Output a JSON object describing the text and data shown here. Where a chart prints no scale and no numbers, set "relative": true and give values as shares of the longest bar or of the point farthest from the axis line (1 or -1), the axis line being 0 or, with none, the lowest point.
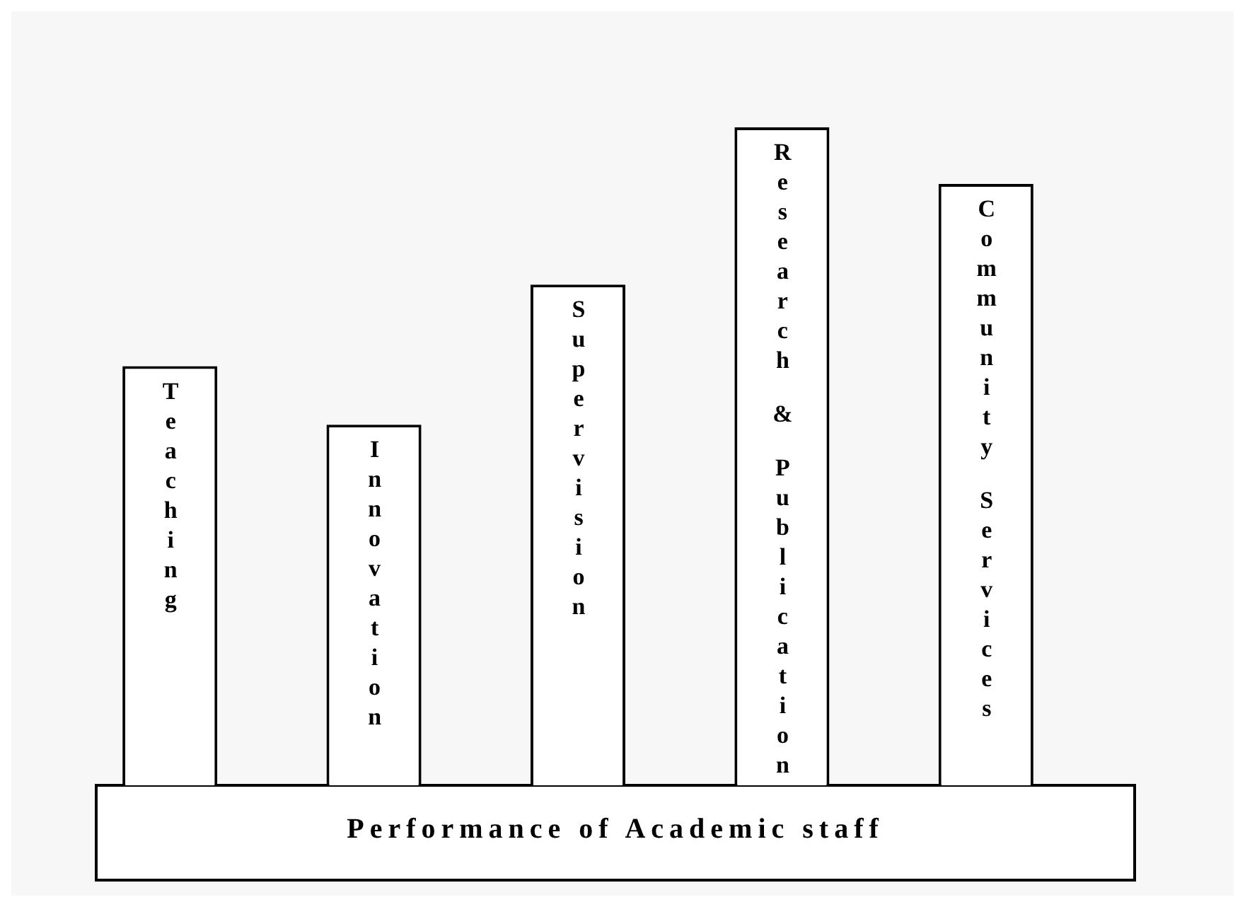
{
  "chart_data": {
    "type": "bar",
    "xlabel": "Performance of Academic staff",
    "categories": [
      "Teaching",
      "Innovation",
      "Supervision",
      "Research & Publication",
      "Community Services"
    ],
    "values": [
      0.637,
      0.548,
      0.761,
      1,
      0.914
    ],
    "color": "#ffffff",
    "relative": true
  }
}
